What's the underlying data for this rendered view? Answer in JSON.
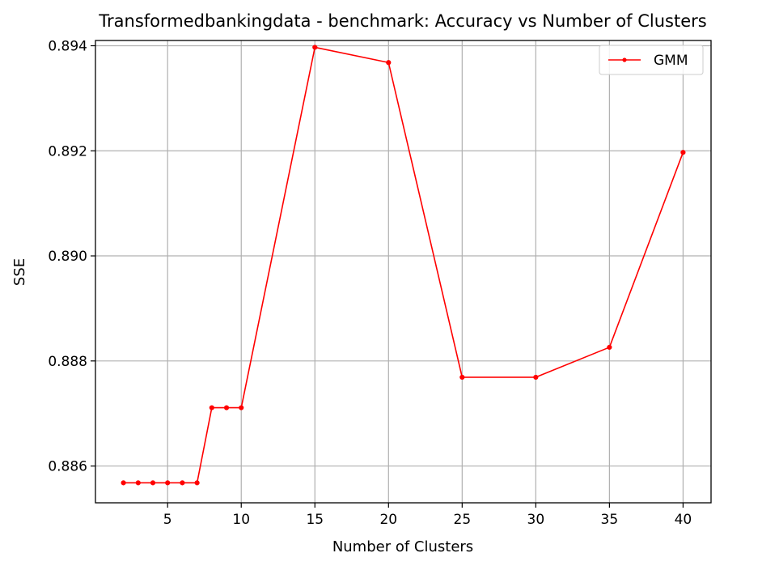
{
  "chart_data": {
    "type": "line",
    "title": "Transformedbankingdata - benchmark: Accuracy vs Number of Clusters",
    "xlabel": "Number of Clusters",
    "ylabel": "SSE",
    "xlim": [
      0.1,
      41.9
    ],
    "ylim": [
      0.8853,
      0.8941
    ],
    "xticks": [
      5,
      10,
      15,
      20,
      25,
      30,
      35,
      40
    ],
    "xtick_labels": [
      "5",
      "10",
      "15",
      "20",
      "25",
      "30",
      "35",
      "40"
    ],
    "yticks": [
      0.886,
      0.888,
      0.89,
      0.892,
      0.894
    ],
    "ytick_labels": [
      "0.886",
      "0.888",
      "0.890",
      "0.892",
      "0.894"
    ],
    "grid": true,
    "legend_position": "top-right",
    "series": [
      {
        "name": "GMM",
        "color": "#ff0000",
        "marker": "circle",
        "x": [
          2,
          3,
          4,
          5,
          6,
          7,
          8,
          9,
          10,
          15,
          20,
          25,
          30,
          35,
          40
        ],
        "y": [
          0.88568,
          0.88568,
          0.88568,
          0.88568,
          0.88568,
          0.88568,
          0.88711,
          0.88711,
          0.88711,
          0.89397,
          0.89368,
          0.88769,
          0.88769,
          0.88826,
          0.89197
        ]
      }
    ]
  }
}
